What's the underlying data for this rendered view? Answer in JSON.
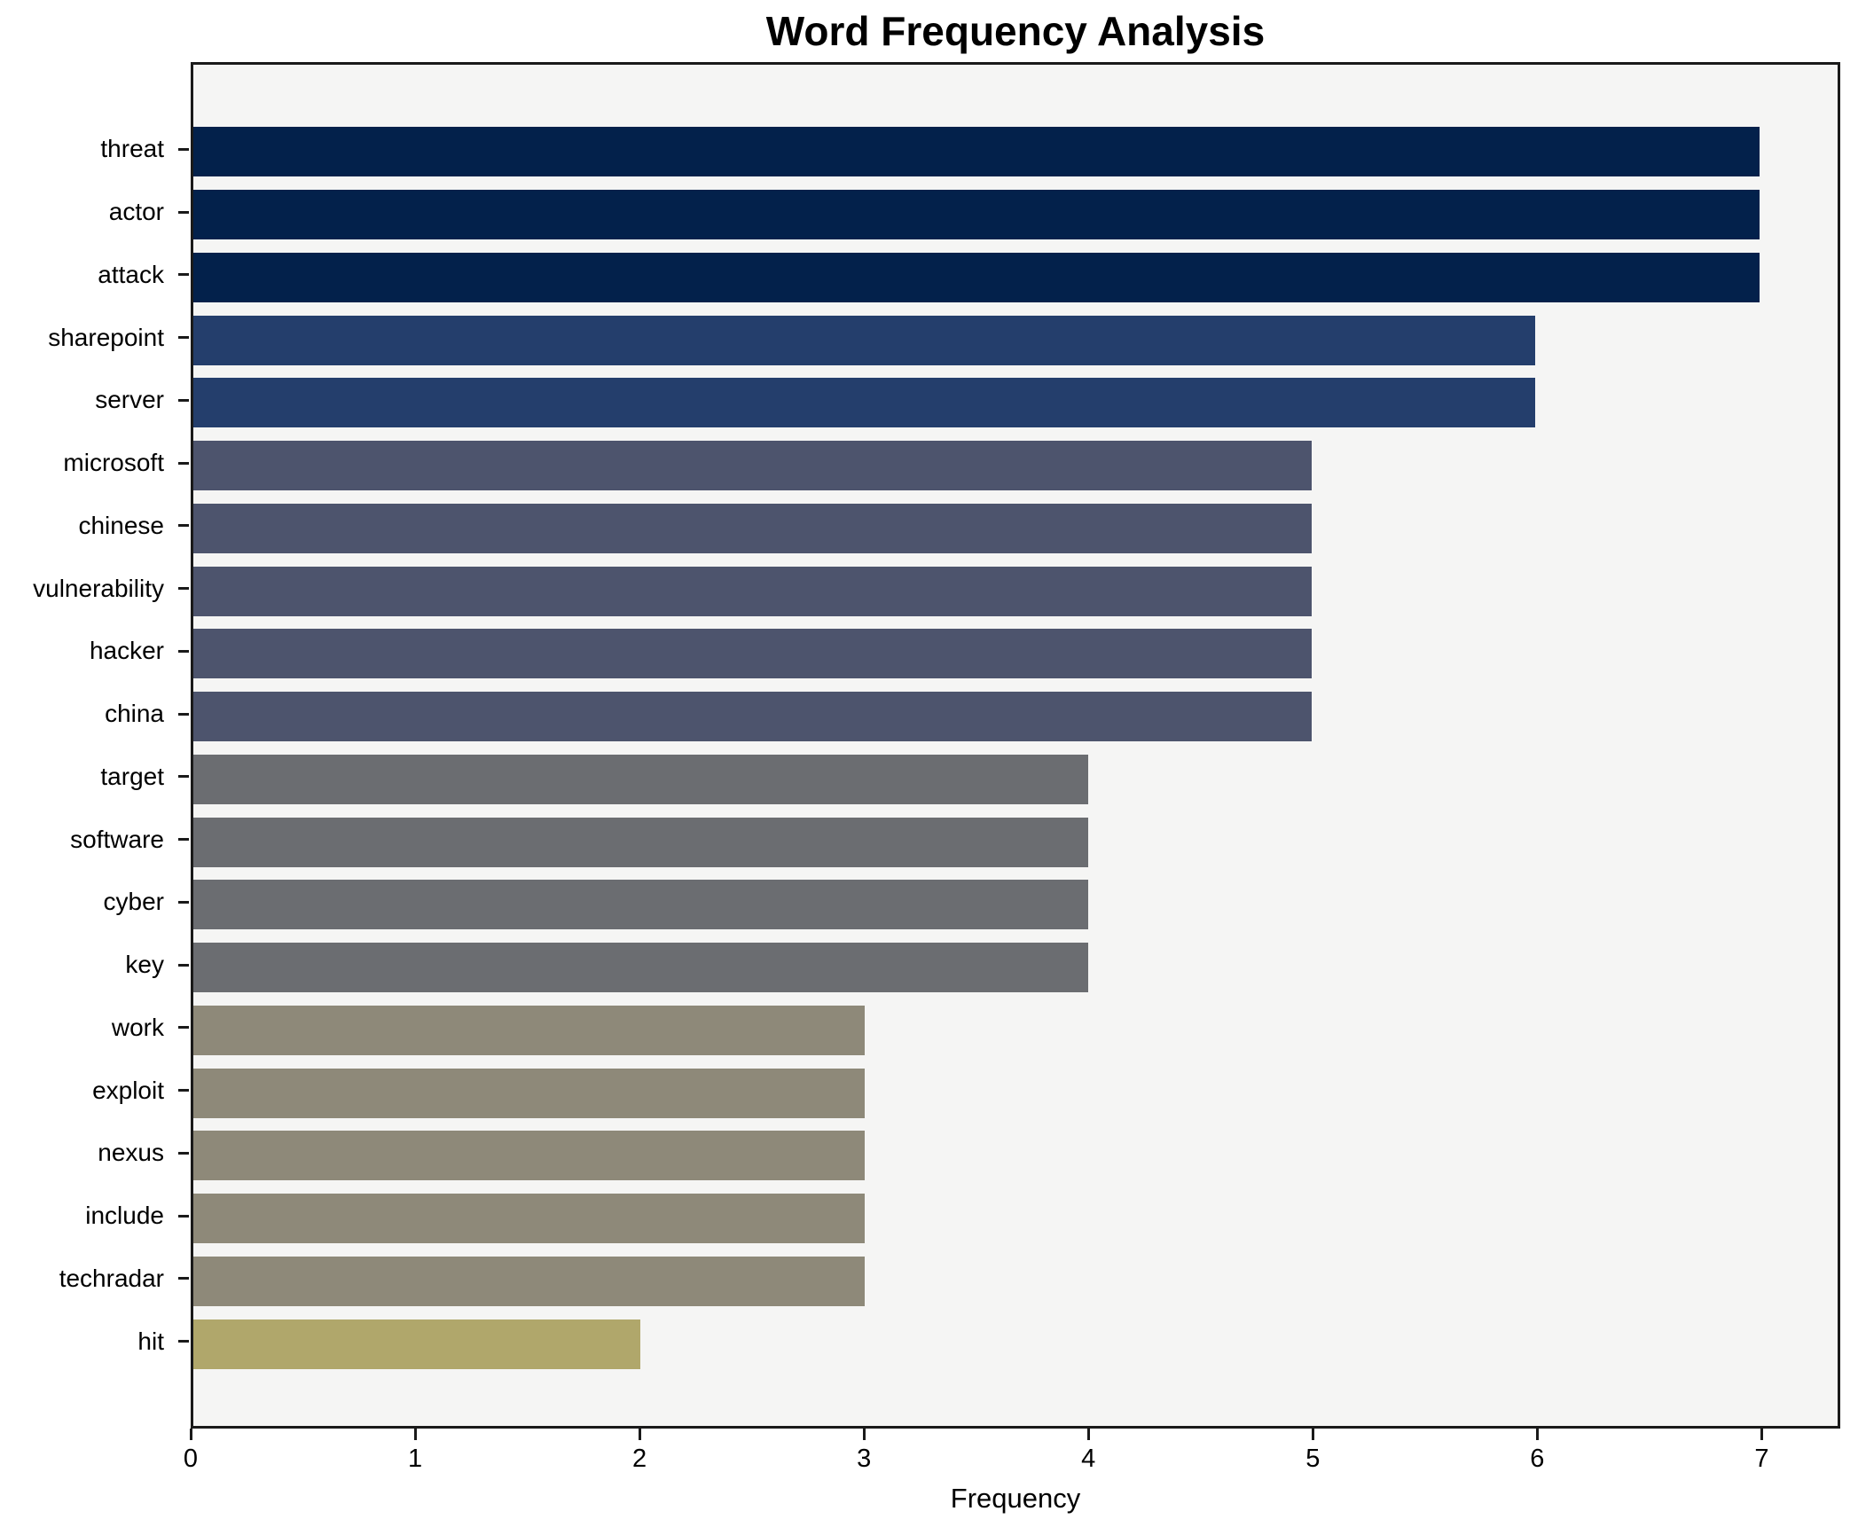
{
  "chart_data": {
    "type": "bar",
    "orientation": "horizontal",
    "title": "Word Frequency Analysis",
    "xlabel": "Frequency",
    "ylabel": "",
    "categories": [
      "threat",
      "actor",
      "attack",
      "sharepoint",
      "server",
      "microsoft",
      "chinese",
      "vulnerability",
      "hacker",
      "china",
      "target",
      "software",
      "cyber",
      "key",
      "work",
      "exploit",
      "nexus",
      "include",
      "techradar",
      "hit"
    ],
    "values": [
      7,
      7,
      7,
      6,
      6,
      5,
      5,
      5,
      5,
      5,
      4,
      4,
      4,
      4,
      3,
      3,
      3,
      3,
      3,
      2
    ],
    "bar_colors": [
      "#03214b",
      "#03214b",
      "#03214b",
      "#243e6c",
      "#243e6c",
      "#4d546d",
      "#4d546d",
      "#4d546d",
      "#4d546d",
      "#4d546d",
      "#6b6d71",
      "#6b6d71",
      "#6b6d71",
      "#6b6d71",
      "#8e8979",
      "#8e8979",
      "#8e8979",
      "#8e8979",
      "#8e8979",
      "#b0a76b"
    ],
    "xticks": [
      "0",
      "1",
      "2",
      "3",
      "4",
      "5",
      "6",
      "7"
    ],
    "xlim": [
      0,
      7.35
    ],
    "grid": false,
    "legend": null,
    "plot_background": "#f5f5f4",
    "frame_color": "#1a1a1a",
    "figure_background": "#ffffff"
  }
}
